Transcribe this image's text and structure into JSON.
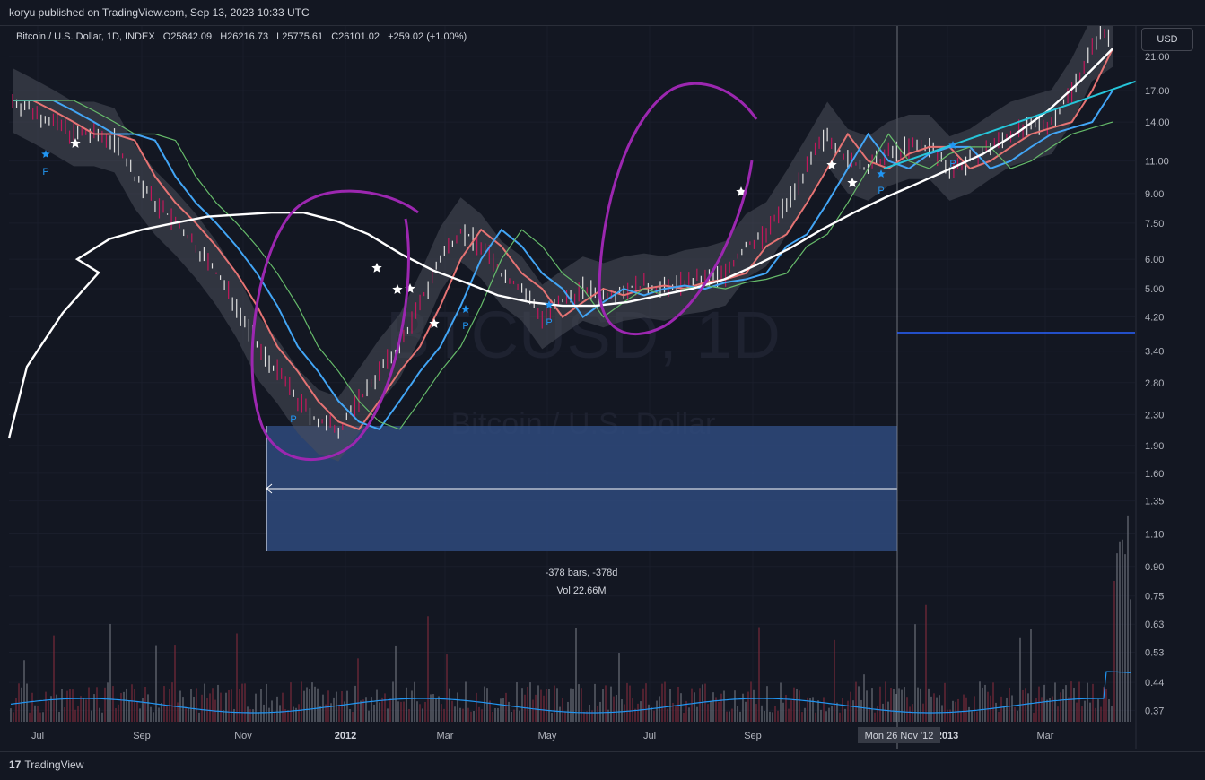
{
  "header": {
    "publisher_text": "koryu published on TradingView.com, Sep 13, 2023 10:33 UTC"
  },
  "legend": {
    "symbol": "Bitcoin / U.S. Dollar, 1D, INDEX",
    "open": "O25842.09",
    "high": "H26216.73",
    "low": "L25775.61",
    "close": "C26101.02",
    "change": "+259.02 (+1.00%)"
  },
  "currency_button": "USD",
  "watermark": {
    "symbol": "BTCUSD, 1D",
    "name": "Bitcoin / U.S. Dollar"
  },
  "measure": {
    "bars": "-378 bars, -378d",
    "vol": "Vol 22.66M"
  },
  "crosshair_date": "Mon 26 Nov '12",
  "footer": {
    "brand": "TradingView"
  },
  "colors": {
    "background": "#131722",
    "accent_blue": "#2962ff",
    "measure_fill": "#2f4a7d",
    "annotation_purple": "#9c27b0",
    "sma_white": "#ffffff",
    "trendline_cyan": "#26c6da",
    "candle_up": "#e0e0e0",
    "candle_down": "#c2185b",
    "volume_line": "#2196f3"
  },
  "chart_data": {
    "type": "line",
    "price_scale": "log",
    "y_ticks": [
      "21.00",
      "17.00",
      "14.00",
      "11.00",
      "9.00",
      "7.50",
      "6.00",
      "5.00",
      "4.20",
      "3.40",
      "2.80",
      "2.30",
      "1.90",
      "1.60",
      "1.35",
      "1.10",
      "0.90",
      "0.75",
      "0.63",
      "0.53",
      "0.44",
      "0.37"
    ],
    "x_ticks": [
      "Jul",
      "Sep",
      "Nov",
      "2012",
      "Mar",
      "May",
      "Jul",
      "Sep",
      "Nov",
      "2013",
      "Mar"
    ],
    "series": [
      {
        "values": [
          16,
          15,
          14,
          13,
          13,
          12.5,
          10,
          8.5,
          7.5,
          6.5,
          5.5,
          4.5,
          3.5,
          3.0,
          2.5,
          2.2,
          2.1,
          2.5,
          3.0,
          3.5,
          4.5,
          6.0,
          7.2,
          6.5,
          5.5,
          5.0,
          4.2,
          4.6,
          5.0,
          4.8,
          5.0,
          5.1,
          5.0,
          5.2,
          5.3,
          5.5,
          6.5,
          7.0,
          8.5,
          10.5,
          13.0,
          11.0,
          10.5,
          11.5,
          12.0,
          12.0,
          10.5,
          11.0,
          12.0,
          13.0,
          13.5,
          14.0,
          17.0,
          22.0,
          30.0
        ]
      },
      {
        "name": "SMA",
        "values": [
          null,
          null,
          6.0,
          6.8,
          7.2,
          7.5,
          7.8,
          7.9,
          8.0,
          8.0,
          7.6,
          7.0,
          6.2,
          5.6,
          5.2,
          4.8,
          4.6,
          4.5,
          4.5,
          4.6,
          4.8,
          5.0,
          5.3,
          5.8,
          6.4,
          7.2,
          8.0,
          8.8,
          9.6,
          10.5,
          11.5,
          13.0,
          15.0,
          18.0,
          22.0
        ]
      }
    ],
    "trendline": {
      "from": [
        10.5,
        "Nov 2012"
      ],
      "to": [
        18,
        "Apr 2013"
      ]
    },
    "marker_labels": [
      "P",
      "P",
      "P",
      "P",
      "P",
      "P"
    ],
    "marker_stars": 12,
    "volume_series_note": "histogram"
  }
}
